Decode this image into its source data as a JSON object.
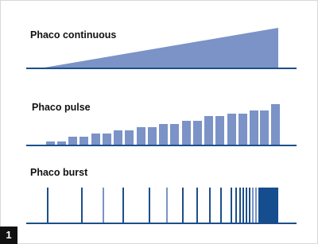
{
  "panels": [
    {
      "label": "Phaco continuous"
    },
    {
      "label": "Phaco pulse"
    },
    {
      "label": "Phaco burst"
    }
  ],
  "figure_number": "1"
}
